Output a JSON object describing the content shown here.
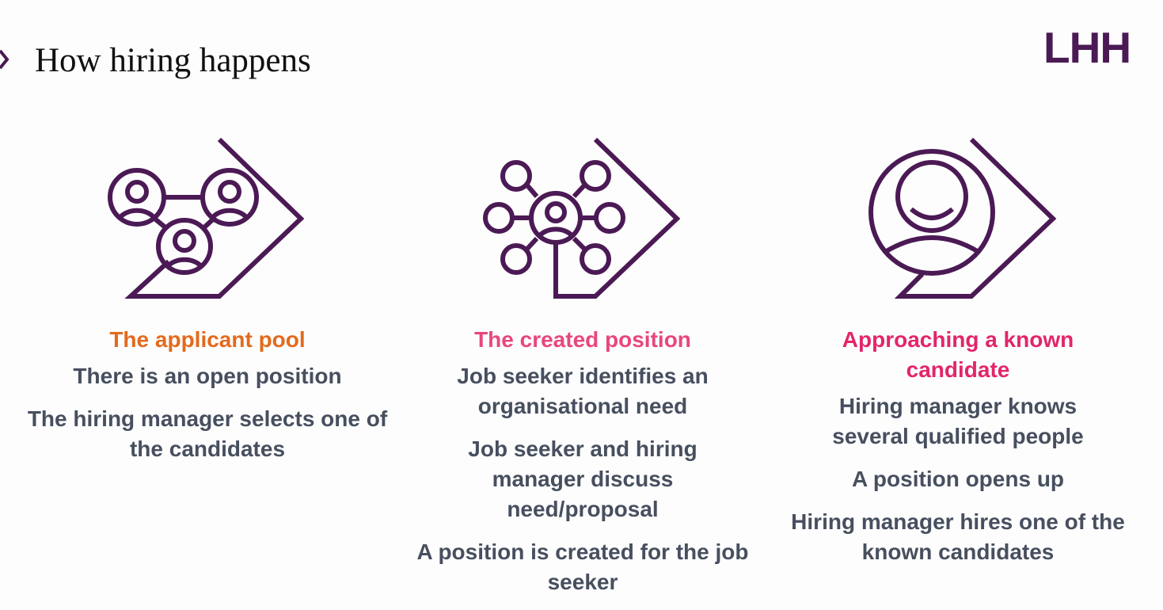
{
  "slide": {
    "title": "How hiring happens",
    "logo_text": "LHH",
    "logo_color": "#4b1a55"
  },
  "colors": {
    "icon_stroke": "#4b1a55",
    "body_text": "#474f5f",
    "heading_orange": "#e36a1d",
    "heading_pink": "#e8477c",
    "heading_magenta": "#e3256b"
  },
  "icons": [
    "network-people-icon",
    "hub-person-icon",
    "known-person-icon"
  ],
  "columns": [
    {
      "heading": "The applicant pool",
      "items": [
        "There is an open position",
        "The hiring manager selects one of the candidates"
      ]
    },
    {
      "heading": "The created position",
      "items": [
        "Job seeker identifies an organisational need",
        "Job seeker and hiring manager discuss need/proposal",
        "A position is created for the job seeker"
      ]
    },
    {
      "heading": "Approaching a known candidate",
      "items": [
        "Hiring manager knows several qualified people",
        "A position opens up",
        "Hiring manager hires one of the known candidates"
      ]
    }
  ]
}
